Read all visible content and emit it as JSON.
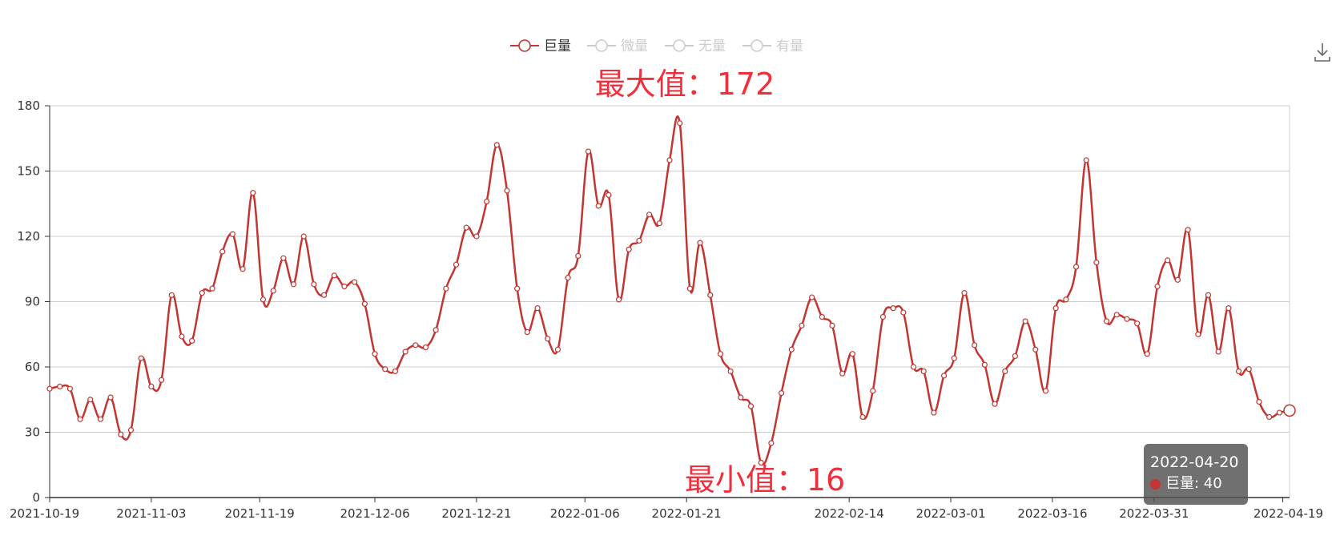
{
  "colors": {
    "series": "#c23531",
    "inactive": "#cccccc",
    "annotation": "#ef2f3c",
    "grid": "#cccccc",
    "axis": "#333333"
  },
  "legend": [
    {
      "name": "巨量",
      "active": true
    },
    {
      "name": "微量",
      "active": false
    },
    {
      "name": "无量",
      "active": false
    },
    {
      "name": "有量",
      "active": false
    }
  ],
  "tooltip": {
    "date": "2022-04-20",
    "series": "巨量",
    "value": "40",
    "row_text": "巨量: 40"
  },
  "toolbox": {
    "icon": "download-icon"
  },
  "chart_data": {
    "type": "line",
    "title": "",
    "xlabel": "",
    "ylabel": "",
    "ylim": [
      0,
      180
    ],
    "yticks": [
      0,
      30,
      60,
      90,
      120,
      150,
      180
    ],
    "grid": true,
    "legend_placement": "top-center",
    "smooth": true,
    "x_start": "2021-10-19",
    "x_end": "2022-04-20",
    "xtick_labels": [
      "2021-10-19",
      "2021-11-03",
      "2021-11-19",
      "2021-12-06",
      "2021-12-21",
      "2022-01-06",
      "2022-01-21",
      "2022-02-14",
      "2022-03-01",
      "2022-03-16",
      "2022-03-31",
      "2022-04-19"
    ],
    "annotations": [
      {
        "text": "最大值：172",
        "position": "top",
        "value": 172
      },
      {
        "text": "最小值：16",
        "position": "bottom",
        "value": 16
      }
    ],
    "series": [
      {
        "name": "巨量",
        "values": [
          50,
          51,
          50,
          36,
          45,
          36,
          46,
          29,
          31,
          64,
          51,
          54,
          93,
          74,
          72,
          94,
          96,
          113,
          121,
          105,
          140,
          91,
          95,
          110,
          98,
          120,
          98,
          93,
          102,
          97,
          99,
          89,
          66,
          59,
          58,
          67,
          70,
          69,
          77,
          96,
          107,
          124,
          120,
          136,
          162,
          141,
          96,
          76,
          87,
          73,
          68,
          101,
          111,
          159,
          134,
          139,
          91,
          114,
          118,
          130,
          126,
          155,
          172,
          96,
          117,
          93,
          66,
          58,
          46,
          42,
          16,
          25,
          48,
          68,
          79,
          92,
          83,
          79,
          57,
          66,
          37,
          49,
          83,
          87,
          85,
          60,
          58,
          39,
          56,
          64,
          94,
          70,
          61,
          43,
          58,
          65,
          81,
          68,
          49,
          87,
          91,
          106,
          155,
          108,
          81,
          84,
          82,
          80,
          66,
          97,
          109,
          100,
          123,
          75,
          93,
          67,
          87,
          58,
          59,
          44,
          37,
          39,
          40
        ]
      }
    ]
  }
}
